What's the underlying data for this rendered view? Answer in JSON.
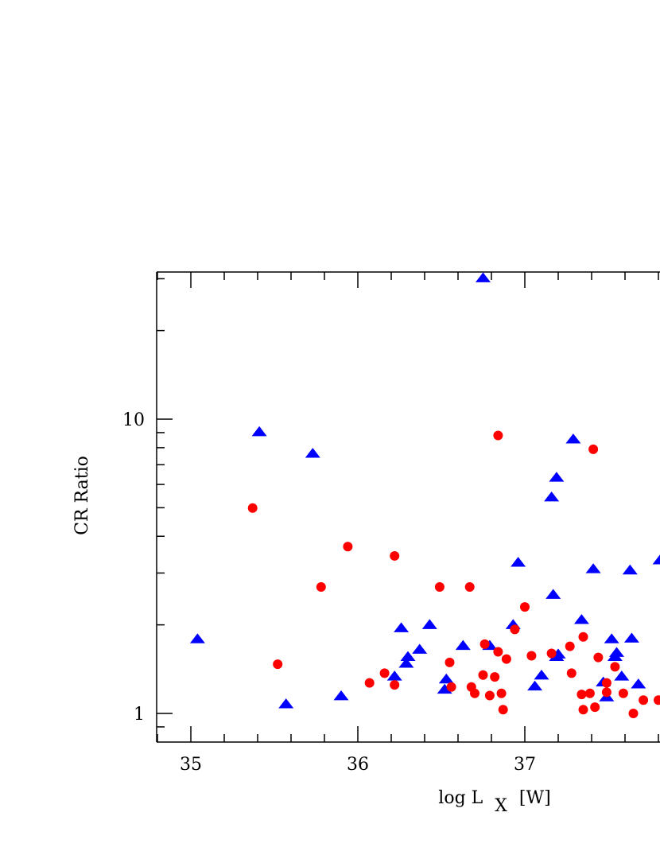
{
  "chart_data": {
    "type": "scatter",
    "xlabel_main": "log L",
    "xlabel_sub": "X",
    "xlabel_unit": "[W]",
    "ylabel": "CR Ratio",
    "y_scale": "log",
    "xlim": [
      34.8,
      37.8
    ],
    "ylim": [
      0.9,
      30
    ],
    "x_ticks": [
      {
        "value": 35,
        "label": "35"
      },
      {
        "value": 36,
        "label": "36"
      },
      {
        "value": 37,
        "label": "37"
      }
    ],
    "y_ticks": [
      {
        "value": 1,
        "label": "1"
      },
      {
        "value": 10,
        "label": "10"
      }
    ],
    "series": [
      {
        "marker": "triangle",
        "color": "#0000ff",
        "points": [
          [
            35.04,
            1.78
          ],
          [
            35.41,
            9.0
          ],
          [
            35.57,
            1.07
          ],
          [
            35.73,
            7.6
          ],
          [
            35.9,
            1.14
          ],
          [
            36.22,
            1.33
          ],
          [
            36.26,
            1.94
          ],
          [
            36.29,
            1.47
          ],
          [
            36.3,
            1.55
          ],
          [
            36.37,
            1.64
          ],
          [
            36.43,
            1.99
          ],
          [
            36.52,
            1.2
          ],
          [
            36.53,
            1.3
          ],
          [
            36.63,
            1.69
          ],
          [
            36.75,
            30.0
          ],
          [
            36.79,
            1.69
          ],
          [
            36.93,
            1.99
          ],
          [
            36.96,
            3.24
          ],
          [
            37.06,
            1.23
          ],
          [
            37.1,
            1.34
          ],
          [
            37.16,
            5.4
          ],
          [
            37.17,
            2.52
          ],
          [
            37.19,
            6.3
          ],
          [
            37.19,
            1.55
          ],
          [
            37.2,
            1.58
          ],
          [
            37.29,
            8.5
          ],
          [
            37.34,
            2.07
          ],
          [
            37.41,
            3.08
          ],
          [
            37.47,
            1.27
          ],
          [
            37.49,
            1.13
          ],
          [
            37.52,
            1.78
          ],
          [
            37.54,
            1.55
          ],
          [
            37.55,
            1.6
          ],
          [
            37.58,
            1.33
          ],
          [
            37.63,
            3.05
          ],
          [
            37.64,
            1.79
          ],
          [
            37.68,
            1.25
          ],
          [
            37.81,
            3.3
          ]
        ]
      },
      {
        "marker": "circle",
        "color": "#ff0000",
        "points": [
          [
            35.37,
            4.99
          ],
          [
            35.52,
            1.47
          ],
          [
            35.78,
            2.69
          ],
          [
            35.94,
            3.69
          ],
          [
            36.07,
            1.27
          ],
          [
            36.16,
            1.37
          ],
          [
            36.22,
            3.43
          ],
          [
            36.22,
            1.25
          ],
          [
            36.49,
            2.69
          ],
          [
            36.55,
            1.49
          ],
          [
            36.56,
            1.23
          ],
          [
            36.67,
            2.69
          ],
          [
            36.68,
            1.23
          ],
          [
            36.7,
            1.17
          ],
          [
            36.75,
            1.35
          ],
          [
            36.76,
            1.72
          ],
          [
            36.79,
            1.15
          ],
          [
            36.82,
            1.33
          ],
          [
            36.84,
            1.62
          ],
          [
            36.84,
            8.8
          ],
          [
            36.86,
            1.17
          ],
          [
            36.87,
            1.03
          ],
          [
            36.89,
            1.53
          ],
          [
            36.94,
            1.93
          ],
          [
            37.0,
            2.3
          ],
          [
            37.04,
            1.57
          ],
          [
            37.16,
            1.6
          ],
          [
            37.27,
            1.69
          ],
          [
            37.28,
            1.37
          ],
          [
            37.34,
            1.16
          ],
          [
            37.35,
            1.82
          ],
          [
            37.35,
            1.03
          ],
          [
            37.39,
            1.17
          ],
          [
            37.41,
            7.9
          ],
          [
            37.42,
            1.05
          ],
          [
            37.44,
            1.55
          ],
          [
            37.49,
            1.27
          ],
          [
            37.49,
            1.18
          ],
          [
            37.54,
            1.44
          ],
          [
            37.59,
            1.17
          ],
          [
            37.65,
            1.0
          ],
          [
            37.71,
            1.11
          ],
          [
            37.8,
            1.11
          ]
        ]
      }
    ]
  }
}
